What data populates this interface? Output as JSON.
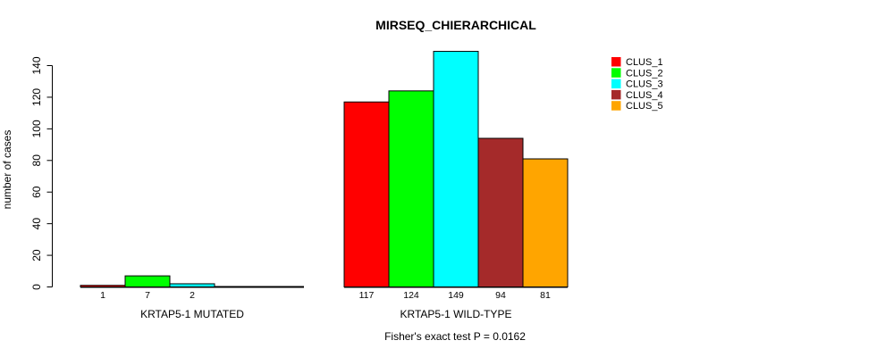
{
  "chart_data": {
    "type": "bar",
    "title": "MIRSEQ_CHIERARCHICAL",
    "ylabel": "number of cases",
    "xlabel": "",
    "ylim": [
      0,
      140
    ],
    "y_ticks": [
      0,
      20,
      40,
      60,
      80,
      100,
      120,
      140
    ],
    "grid": false,
    "background": "#ffffff",
    "bar_border_color": "#000000",
    "categories": [
      "KRTAP5-1 MUTATED",
      "KRTAP5-1 WILD-TYPE"
    ],
    "series": [
      {
        "name": "CLUS_1",
        "color": "#ff0000",
        "values": [
          1,
          117
        ]
      },
      {
        "name": "CLUS_2",
        "color": "#00ff00",
        "values": [
          7,
          124
        ]
      },
      {
        "name": "CLUS_3",
        "color": "#00ffff",
        "values": [
          2,
          149
        ]
      },
      {
        "name": "CLUS_4",
        "color": "#a52a2a",
        "values": [
          0,
          94
        ]
      },
      {
        "name": "CLUS_5",
        "color": "#ffa500",
        "values": [
          0,
          81
        ]
      }
    ],
    "value_labels_shown_for_zero": false,
    "legend": {
      "position": "top-right",
      "entries": [
        "CLUS_1",
        "CLUS_2",
        "CLUS_3",
        "CLUS_4",
        "CLUS_5"
      ]
    },
    "annotation": "Fisher's exact test P = 0.0162"
  }
}
